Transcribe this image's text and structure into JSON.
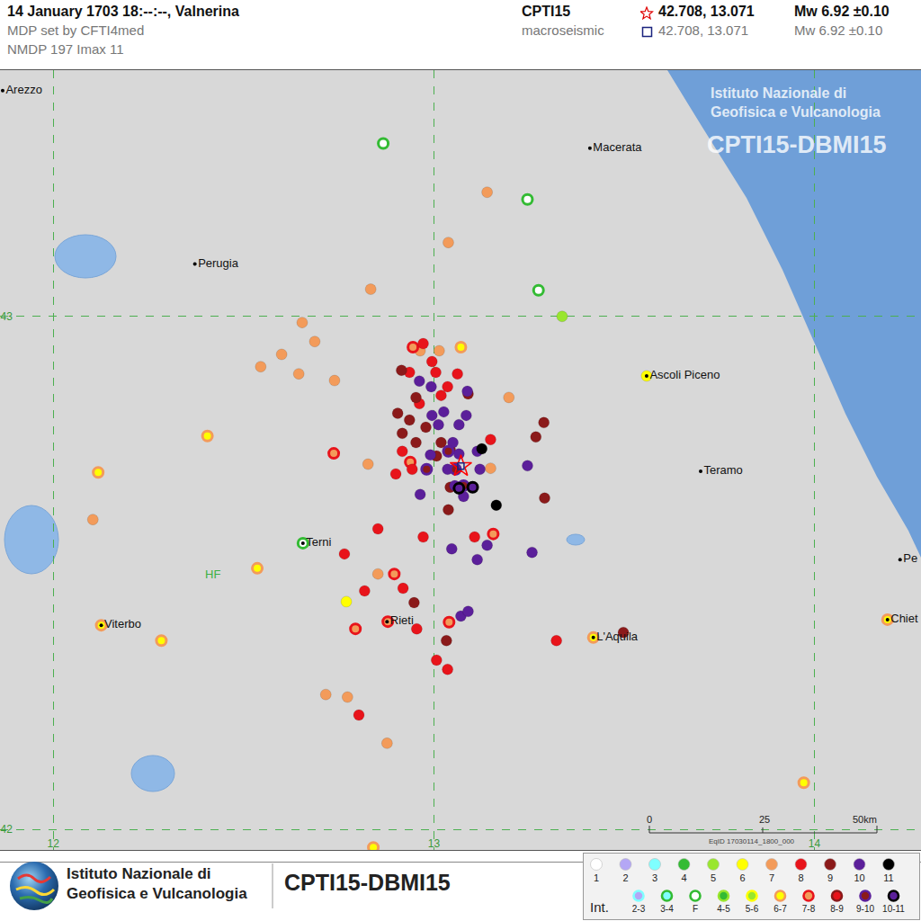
{
  "header": {
    "title": "14 January 1703  18:--:--,  Valnerina",
    "lines": [
      "MDP set by CFTI4med",
      "NMDP 197   Imax 11"
    ],
    "catalogue": "CPTI15",
    "method": "macroseismic",
    "epicentre_star": {
      "coords": "42.708, 13.071",
      "magnitude": "Mw 6.92 ±0.10"
    },
    "epicentre_square": {
      "coords": "42.708, 13.071",
      "magnitude": "Mw 6.92 ±0.10"
    }
  },
  "watermark": [
    "Istituto Nazionale di",
    "Geofisica e Vulcanologia",
    "CPTI15-DBMI15"
  ],
  "scale": {
    "labels": [
      "0",
      "25",
      "50km"
    ],
    "note": "EqID 17030114_1800_000"
  },
  "footer": {
    "institute": [
      "Istituto Nazionale di",
      "Geofisica e Vulcanologia"
    ],
    "product": "CPTI15-DBMI15",
    "legend_title": "Int.",
    "legend": [
      {
        "label": "1",
        "fill": "#ffffff"
      },
      {
        "label": "2",
        "fill": "#b4a7f5"
      },
      {
        "label": "3",
        "fill": "#7fffff"
      },
      {
        "label": "4",
        "fill": "#33bb33"
      },
      {
        "label": "5",
        "fill": "#99e62e"
      },
      {
        "label": "6",
        "fill": "#ffff00"
      },
      {
        "label": "7",
        "fill": "#f39b5a"
      },
      {
        "label": "8",
        "fill": "#e8141b"
      },
      {
        "label": "9",
        "fill": "#8b1a1a"
      },
      {
        "label": "10",
        "fill": "#5b1f9a"
      },
      {
        "label": "11",
        "fill": "#000000"
      }
    ],
    "legend_half": [
      {
        "label": "2-3",
        "fill": "#b4a7f5",
        "ring": "#7fffff"
      },
      {
        "label": "3-4",
        "fill": "#7fffff",
        "ring": "#33bb33"
      },
      {
        "label": "F",
        "fill": "#ffffff",
        "ring": "#33bb33"
      },
      {
        "label": "4-5",
        "fill": "#33bb33",
        "ring": "#99e62e"
      },
      {
        "label": "5-6",
        "fill": "#99e62e",
        "ring": "#ffff00"
      },
      {
        "label": "6-7",
        "fill": "#ffff00",
        "ring": "#f39b5a"
      },
      {
        "label": "7-8",
        "fill": "#f39b5a",
        "ring": "#e8141b"
      },
      {
        "label": "8-9",
        "fill": "#e8141b",
        "ring": "#8b1a1a"
      },
      {
        "label": "9-10",
        "fill": "#8b1a1a",
        "ring": "#5b1f9a"
      },
      {
        "label": "10-11",
        "fill": "#5b1f9a",
        "ring": "#000000"
      }
    ]
  },
  "chart_data": {
    "type": "scatter",
    "xlim": [
      11.86,
      14.28
    ],
    "ylim": [
      41.96,
      43.48
    ],
    "xticks": [
      12,
      13,
      14
    ],
    "yticks": [
      42,
      43
    ],
    "grid": true,
    "epicentre": {
      "lon": 13.071,
      "lat": 42.708
    },
    "cities": [
      {
        "name": "Arezzo",
        "lon": 11.867,
        "lat": 43.44
      },
      {
        "name": "Macerata",
        "lon": 13.41,
        "lat": 43.328
      },
      {
        "name": "Perugia",
        "lon": 12.372,
        "lat": 43.102
      },
      {
        "name": "Ascoli Piceno",
        "lon": 13.559,
        "lat": 42.884
      },
      {
        "name": "Teramo",
        "lon": 13.701,
        "lat": 42.698
      },
      {
        "name": "Terni",
        "lon": 12.656,
        "lat": 42.558
      },
      {
        "name": "Rieti",
        "lon": 12.877,
        "lat": 42.405
      },
      {
        "name": "L'Aquila",
        "lon": 13.419,
        "lat": 42.374
      },
      {
        "name": "Viterbo",
        "lon": 12.126,
        "lat": 42.398
      },
      {
        "name": "Chiet",
        "lon": 14.192,
        "lat": 42.409
      },
      {
        "name": "Pe",
        "lon": 14.225,
        "lat": 42.526
      }
    ],
    "annotations": [
      {
        "text": "HF",
        "x": 12.419,
        "y": 42.498
      }
    ],
    "series": [
      {
        "name": "F",
        "color": "#ffffff",
        "marker": "ring",
        "x": [
          12.867,
          13.246,
          13.275,
          12.656
        ],
        "y": [
          43.337,
          43.228,
          43.051,
          42.558
        ]
      },
      {
        "name": "5",
        "color": "#99e62e",
        "marker": "dot",
        "x": [
          13.337
        ],
        "y": [
          43.0
        ]
      },
      {
        "name": "6",
        "color": "#ffff00",
        "marker": "dot",
        "x": [
          13.559,
          12.77
        ],
        "y": [
          42.884,
          42.444
        ]
      },
      {
        "name": "6-7",
        "color": "#ffff00",
        "marker": "ring",
        "x": [
          12.405,
          12.118,
          12.536,
          12.284,
          12.126,
          12.841,
          13.972,
          14.192,
          13.419,
          13.071
        ],
        "y": [
          42.767,
          42.696,
          42.509,
          42.368,
          42.398,
          41.965,
          42.091,
          42.409,
          42.374,
          42.94
        ]
      },
      {
        "name": "7",
        "color": "#f39b5a",
        "marker": "dot",
        "x": [
          13.14,
          13.038,
          12.834,
          12.654,
          12.687,
          12.545,
          12.6,
          12.645,
          12.739,
          13.197,
          12.827,
          12.104,
          13.014,
          12.716,
          12.773,
          12.877,
          12.853,
          13.149,
          12.964
        ],
        "y": [
          43.242,
          43.144,
          43.053,
          42.988,
          42.951,
          42.902,
          42.926,
          42.888,
          42.875,
          42.842,
          42.712,
          42.604,
          42.933,
          42.263,
          42.258,
          42.168,
          42.498,
          42.704,
          42.933
        ]
      },
      {
        "name": "7-8",
        "color": "#f39b5a",
        "marker": "ring",
        "x": [
          12.945,
          12.737,
          12.794,
          12.879,
          13.04,
          13.156,
          12.896,
          12.938
        ],
        "y": [
          42.94,
          42.733,
          42.391,
          42.405,
          42.404,
          42.576,
          42.498,
          42.716
        ]
      },
      {
        "name": "8",
        "color": "#e8141b",
        "marker": "dot",
        "x": [
          12.972,
          13.005,
          13.019,
          13.036,
          13.062,
          12.995,
          12.962,
          12.853,
          12.765,
          12.818,
          12.919,
          12.972,
          12.955,
          13.322,
          13.036,
          13.007,
          12.803,
          13.107,
          12.943,
          12.917,
          12.936,
          13.149,
          12.9
        ],
        "y": [
          42.947,
          42.891,
          42.846,
          42.863,
          42.888,
          42.912,
          42.83,
          42.586,
          42.537,
          42.465,
          42.47,
          42.57,
          42.391,
          42.368,
          42.312,
          42.33,
          42.223,
          42.57,
          42.702,
          42.737,
          42.891,
          42.76,
          42.693
        ]
      },
      {
        "name": "9",
        "color": "#8b1a1a",
        "marker": "dot",
        "x": [
          12.915,
          12.905,
          12.936,
          12.953,
          12.917,
          12.979,
          13.019,
          13.043,
          13.289,
          13.268,
          13.291,
          12.948,
          13.033,
          13.498,
          13.09,
          13.007,
          13.038,
          12.953,
          13.043
        ],
        "y": [
          42.895,
          42.811,
          42.798,
          42.754,
          42.772,
          42.784,
          42.754,
          42.667,
          42.793,
          42.765,
          42.646,
          42.442,
          42.368,
          42.384,
          42.849,
          42.728,
          42.623,
          42.842,
          42.74
        ]
      },
      {
        "name": "10",
        "color": "#5b1f9a",
        "marker": "dot",
        "x": [
          12.962,
          12.993,
          13.026,
          12.995,
          13.012,
          13.05,
          13.085,
          13.036,
          13.055,
          13.078,
          13.121,
          13.066,
          13.246,
          13.14,
          13.114,
          13.071,
          13.09,
          13.047,
          13.258,
          12.964,
          12.991,
          13.114,
          13.088,
          13.066
        ],
        "y": [
          42.874,
          42.863,
          42.814,
          42.807,
          42.789,
          42.754,
          42.807,
          42.702,
          42.67,
          42.649,
          42.702,
          42.732,
          42.709,
          42.554,
          42.526,
          42.416,
          42.425,
          42.547,
          42.54,
          42.653,
          42.73,
          42.737,
          42.854,
          42.789
        ]
      },
      {
        "name": "9-10",
        "color": "#8b1a1a",
        "marker": "ring",
        "x": [
          13.038,
          13.057,
          13.078,
          12.981
        ],
        "y": [
          42.737,
          42.702,
          42.67,
          42.702
        ]
      },
      {
        "name": "10-11",
        "color": "#5b1f9a",
        "marker": "ring",
        "x": [
          13.066,
          13.102
        ],
        "y": [
          42.665,
          42.667
        ]
      },
      {
        "name": "11",
        "color": "#000000",
        "marker": "dot",
        "x": [
          13.126,
          13.164
        ],
        "y": [
          42.742,
          42.632
        ]
      }
    ]
  }
}
